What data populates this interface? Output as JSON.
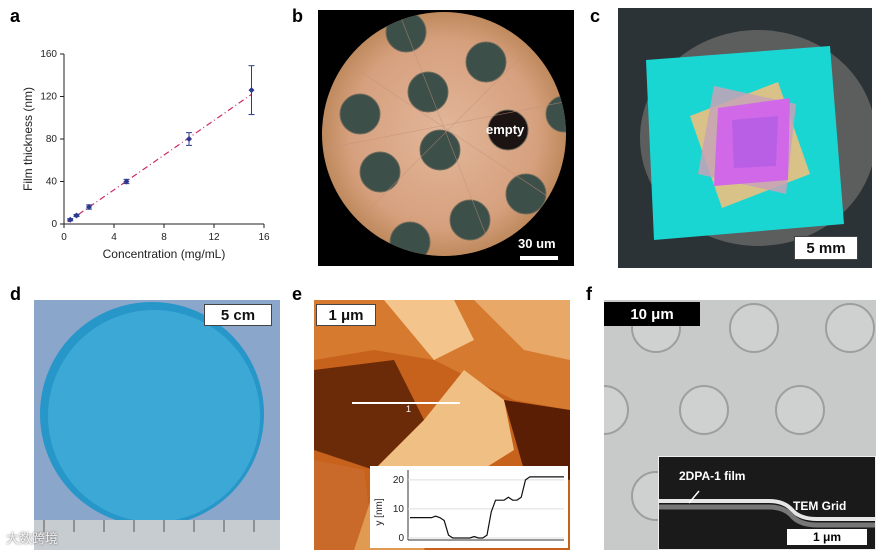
{
  "labels": {
    "a": "a",
    "b": "b",
    "c": "c",
    "d": "d",
    "e": "e",
    "f": "f"
  },
  "chart_data": {
    "type": "scatter",
    "xlabel": "Concentration (mg/mL)",
    "ylabel": "Film thickness (nm)",
    "xlim": [
      0,
      16
    ],
    "ylim": [
      0,
      160
    ],
    "xticks": [
      "0",
      "4",
      "8",
      "12",
      "16"
    ],
    "yticks": [
      "0",
      "40",
      "80",
      "120",
      "160"
    ],
    "points": [
      {
        "x": 0.5,
        "y": 4,
        "err": 1
      },
      {
        "x": 1,
        "y": 8,
        "err": 1
      },
      {
        "x": 2,
        "y": 16,
        "err": 2
      },
      {
        "x": 5,
        "y": 40,
        "err": 2
      },
      {
        "x": 10,
        "y": 80,
        "err": 6
      },
      {
        "x": 15,
        "y": 126,
        "err": 23
      }
    ],
    "fit": {
      "x": [
        0.3,
        15
      ],
      "y": [
        2,
        122
      ]
    },
    "colors": {
      "points": "#2b3a8f",
      "fit": "#cc2a6a"
    }
  },
  "b": {
    "scale": "30 um",
    "annotation": "empty"
  },
  "c": {
    "scale": "5 mm"
  },
  "d": {
    "scale": "5 cm"
  },
  "e": {
    "scale": "1 μm",
    "marker": "1",
    "inset_ylabel": "y [nm]",
    "inset_yticks": [
      "20",
      "10",
      "0"
    ],
    "profile": [
      7,
      7,
      7,
      7,
      7,
      7,
      7.5,
      7,
      6,
      1,
      0,
      0,
      0,
      0,
      0,
      0.5,
      0,
      0,
      1,
      9,
      13,
      13,
      13,
      14,
      13,
      13,
      14,
      20,
      21,
      21,
      21,
      21,
      21,
      21,
      21,
      21,
      21
    ]
  },
  "f": {
    "scale": "10 μm",
    "inset_text1": "2DPA-1 film",
    "inset_text2": "TEM Grid",
    "inset_scale": "1 μm"
  },
  "watermark": "大数跨境"
}
